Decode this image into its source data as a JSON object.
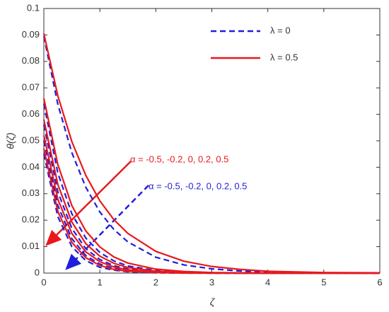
{
  "chart_data": {
    "type": "line",
    "x_label": "ζ",
    "y_label": "θ(ζ)",
    "x": [
      0,
      0.25,
      0.5,
      0.75,
      1,
      1.25,
      1.5,
      2,
      2.5,
      3,
      3.5,
      4,
      5,
      6
    ],
    "xlim": [
      0,
      6
    ],
    "ylim": [
      0,
      0.1
    ],
    "xticks": [
      0,
      1,
      2,
      3,
      4,
      5,
      6
    ],
    "yticks": [
      0,
      0.01,
      0.02,
      0.03,
      0.04,
      0.05,
      0.06,
      0.07,
      0.08,
      0.09,
      0.1
    ],
    "grid": false,
    "legend": "upper right",
    "series": [
      {
        "name": "λ = 0",
        "color": "#1f1fdb",
        "dashed": true,
        "values": [
          [
            0.0895,
            0.0638,
            0.0455,
            0.0324,
            0.0231,
            0.0165,
            0.0118,
            0.006,
            0.0031,
            0.0016,
            0.0008,
            0.0004,
            0.0001,
            0
          ],
          [
            0.064,
            0.0378,
            0.0224,
            0.0132,
            0.0078,
            0.0046,
            0.0027,
            0.001,
            0.0003,
            0.0001,
            0,
            0,
            0,
            0
          ],
          [
            0.056,
            0.0307,
            0.0169,
            0.0092,
            0.0051,
            0.0028,
            0.0015,
            0.0005,
            0.0001,
            0,
            0,
            0,
            0,
            0
          ],
          [
            0.05,
            0.0255,
            0.013,
            0.0066,
            0.0034,
            0.0017,
            0.0009,
            0.0002,
            0.0001,
            0,
            0,
            0,
            0,
            0
          ],
          [
            0.045,
            0.0213,
            0.01,
            0.0047,
            0.0022,
            0.0011,
            0.0005,
            0.0001,
            0,
            0,
            0,
            0,
            0,
            0
          ]
        ]
      },
      {
        "name": "λ = 0.5",
        "color": "#e8191c",
        "dashed": false,
        "values": [
          [
            0.0905,
            0.067,
            0.0497,
            0.0369,
            0.0273,
            0.0202,
            0.015,
            0.0082,
            0.0045,
            0.0025,
            0.0014,
            0.0007,
            0.0002,
            0.0001
          ],
          [
            0.066,
            0.041,
            0.0255,
            0.0159,
            0.0099,
            0.0061,
            0.0038,
            0.0015,
            0.0006,
            0.0002,
            0.0001,
            0,
            0,
            0
          ],
          [
            0.058,
            0.0335,
            0.0193,
            0.0111,
            0.0064,
            0.0037,
            0.0021,
            0.0007,
            0.0002,
            0.0001,
            0,
            0,
            0,
            0
          ],
          [
            0.052,
            0.0279,
            0.015,
            0.008,
            0.0043,
            0.0023,
            0.0012,
            0.0004,
            0.0001,
            0,
            0,
            0,
            0,
            0
          ],
          [
            0.047,
            0.0233,
            0.0116,
            0.0058,
            0.0029,
            0.0014,
            0.0007,
            0.0002,
            0,
            0,
            0,
            0,
            0,
            0
          ]
        ]
      }
    ],
    "annotations": [
      {
        "text": "α = -0.5, -0.2, 0, 0.2, 0.5",
        "color": "#e8191c"
      },
      {
        "text": "α = -0.5, -0.2, 0, 0.2, 0.5",
        "color": "#1f1fdb"
      }
    ]
  }
}
